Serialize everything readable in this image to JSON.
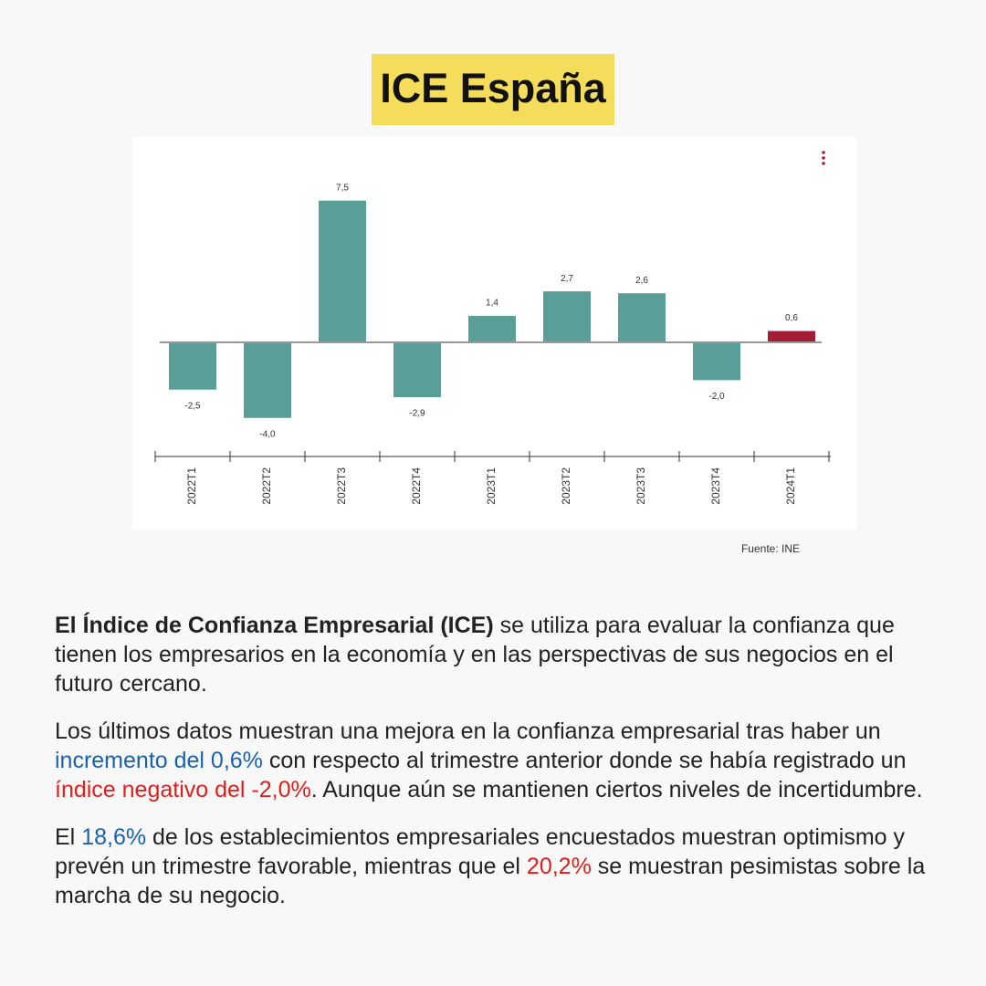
{
  "chart_data": {
    "type": "bar",
    "title": "ICE España",
    "categories": [
      "2022T1",
      "2022T2",
      "2022T3",
      "2022T4",
      "2023T1",
      "2023T2",
      "2023T3",
      "2023T4",
      "2024T1"
    ],
    "values": [
      -2.5,
      -4.0,
      7.5,
      -2.9,
      1.4,
      2.7,
      2.6,
      -2.0,
      0.6
    ],
    "value_labels": [
      "-2,5",
      "-4,0",
      "7,5",
      "-2,9",
      "1,4",
      "2,7",
      "2,6",
      "-2,0",
      "0,6"
    ],
    "colors": [
      "#5a9e98",
      "#5a9e98",
      "#5a9e98",
      "#5a9e98",
      "#5a9e98",
      "#5a9e98",
      "#5a9e98",
      "#5a9e98",
      "#a51c35"
    ],
    "source": "Fuente: INE"
  },
  "text": {
    "paragraphs": [
      [
        {
          "text": "El Índice de Confianza Empresarial (ICE)",
          "weight": "bold"
        },
        {
          "text": " se utiliza para evaluar la confianza que tienen los empresarios en la economía y en las perspectivas de sus negocios en el futuro cercano."
        }
      ],
      [
        {
          "text": "Los últimos datos muestran una mejora en la confianza empresarial tras haber un "
        },
        {
          "text": "incremento del 0,6%",
          "color": "#1a62b0"
        },
        {
          "text": " con respecto al trimestre anterior donde se había registrado un "
        },
        {
          "text": "índice negativo del -2,0%",
          "color": "#e0201c"
        },
        {
          "text": ". Aunque aún se mantienen ciertos niveles de incertidumbre."
        }
      ],
      [
        {
          "text": "El "
        },
        {
          "text": "18,6%",
          "color": "#1a62b0"
        },
        {
          "text": " de los establecimientos empresariales encuestados muestran optimismo y prevén un trimestre favorable, mientras que el "
        },
        {
          "text": "20,2%",
          "color": "#e0201c"
        },
        {
          "text": " se muestran pesimistas sobre la marcha de su negocio."
        }
      ]
    ]
  }
}
